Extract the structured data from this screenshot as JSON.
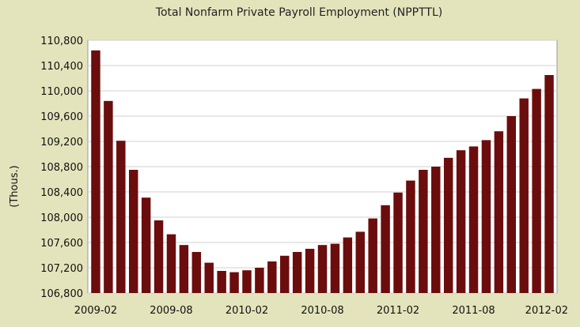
{
  "chart_data": {
    "type": "bar",
    "title": "Total Nonfarm Private Payroll Employment (NPPTTL)",
    "ylabel": "(Thous.)",
    "xlabel": "",
    "ylim": [
      106800,
      110800
    ],
    "y_ticks": [
      106800,
      107200,
      107600,
      108000,
      108400,
      108800,
      109200,
      109600,
      110000,
      110400,
      110800
    ],
    "y_tick_labels": [
      "106,800",
      "107,200",
      "107,600",
      "108,000",
      "108,400",
      "108,800",
      "109,200",
      "109,600",
      "110,000",
      "110,400",
      "110,800"
    ],
    "x_tick_labels": [
      "2009-02",
      "2009-08",
      "2010-02",
      "2010-08",
      "2011-02",
      "2011-08",
      "2012-02"
    ],
    "x_tick_indices": [
      0,
      6,
      12,
      18,
      24,
      30,
      36
    ],
    "categories": [
      "2009-02",
      "2009-03",
      "2009-04",
      "2009-05",
      "2009-06",
      "2009-07",
      "2009-08",
      "2009-09",
      "2009-10",
      "2009-11",
      "2009-12",
      "2010-01",
      "2010-02",
      "2010-03",
      "2010-04",
      "2010-05",
      "2010-06",
      "2010-07",
      "2010-08",
      "2010-09",
      "2010-10",
      "2010-11",
      "2010-12",
      "2011-01",
      "2011-02",
      "2011-03",
      "2011-04",
      "2011-05",
      "2011-06",
      "2011-07",
      "2011-08",
      "2011-09",
      "2011-10",
      "2011-11",
      "2011-12",
      "2012-01",
      "2012-02"
    ],
    "values": [
      110640,
      109840,
      109210,
      108750,
      108310,
      107950,
      107730,
      107560,
      107450,
      107280,
      107150,
      107130,
      107160,
      107200,
      107300,
      107390,
      107450,
      107500,
      107560,
      107580,
      107680,
      107770,
      107980,
      108190,
      108390,
      108580,
      108750,
      108800,
      108940,
      109060,
      109120,
      109220,
      109360,
      109600,
      109880,
      110030,
      110250
    ],
    "bar_color": "#6b0d0d",
    "plot_bg": "#ffffff",
    "grid": true
  }
}
